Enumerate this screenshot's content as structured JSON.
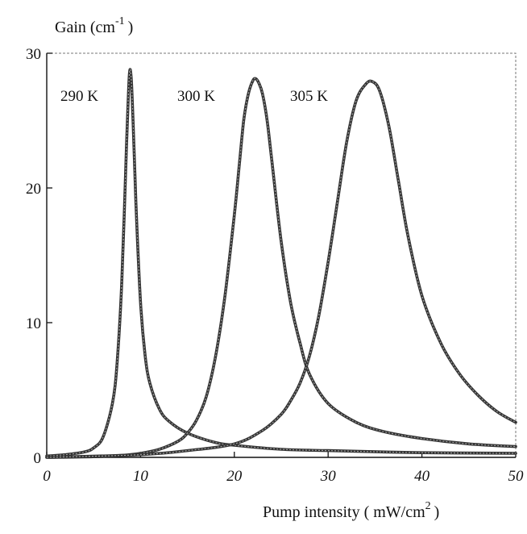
{
  "chart_data": {
    "type": "line",
    "ylabel": {
      "base": "Gain (cm",
      "sup": "-1",
      "close": ")"
    },
    "xlabel": {
      "base": "Pump intensity ( mW/cm",
      "sup": "2",
      "close": ")"
    },
    "xlim": [
      0,
      50
    ],
    "ylim": [
      0,
      30
    ],
    "xticks": [
      0,
      10,
      20,
      30,
      40,
      50
    ],
    "yticks": [
      0,
      10,
      20,
      30
    ],
    "grid": false,
    "series": [
      {
        "name": "290 K",
        "label": "290 K",
        "x": [
          0,
          2,
          4,
          5,
          6,
          7,
          7.5,
          8,
          8.5,
          8.8,
          9,
          9.2,
          9.5,
          10,
          10.5,
          11,
          12,
          13,
          15,
          18,
          20,
          25,
          30,
          40,
          50
        ],
        "y": [
          0.1,
          0.2,
          0.4,
          0.7,
          1.5,
          4.0,
          7.0,
          13.0,
          23.0,
          28.3,
          28.2,
          25.0,
          19.0,
          11.5,
          7.5,
          5.5,
          3.6,
          2.7,
          1.8,
          1.1,
          0.9,
          0.6,
          0.5,
          0.35,
          0.3
        ]
      },
      {
        "name": "300 K",
        "label": "300 K",
        "x": [
          0,
          5,
          8,
          10,
          12,
          14,
          15,
          16,
          17,
          18,
          19,
          20,
          20.5,
          21,
          21.5,
          22,
          22.3,
          22.6,
          23,
          23.5,
          24,
          25,
          26,
          27,
          28,
          30,
          33,
          36,
          40,
          45,
          50
        ],
        "y": [
          0.0,
          0.05,
          0.15,
          0.3,
          0.6,
          1.2,
          1.8,
          2.8,
          4.5,
          7.5,
          12.0,
          18.0,
          21.5,
          25.0,
          27.0,
          28.0,
          28.1,
          27.8,
          27.0,
          25.0,
          22.0,
          16.0,
          11.5,
          8.5,
          6.2,
          4.0,
          2.6,
          1.9,
          1.4,
          1.0,
          0.8
        ]
      },
      {
        "name": "305 K",
        "label": "305 K",
        "x": [
          0,
          10,
          15,
          20,
          23,
          25,
          26,
          27,
          28,
          29,
          30,
          31,
          32,
          33,
          34,
          34.7,
          35.5,
          36.5,
          37.5,
          38.5,
          40,
          42,
          44,
          46,
          48,
          50
        ],
        "y": [
          0.0,
          0.2,
          0.5,
          1.0,
          2.0,
          3.2,
          4.2,
          5.5,
          7.5,
          10.5,
          14.5,
          19.0,
          23.5,
          26.5,
          27.7,
          27.9,
          27.2,
          24.5,
          20.5,
          16.5,
          12.0,
          8.5,
          6.2,
          4.6,
          3.4,
          2.6
        ]
      }
    ]
  }
}
